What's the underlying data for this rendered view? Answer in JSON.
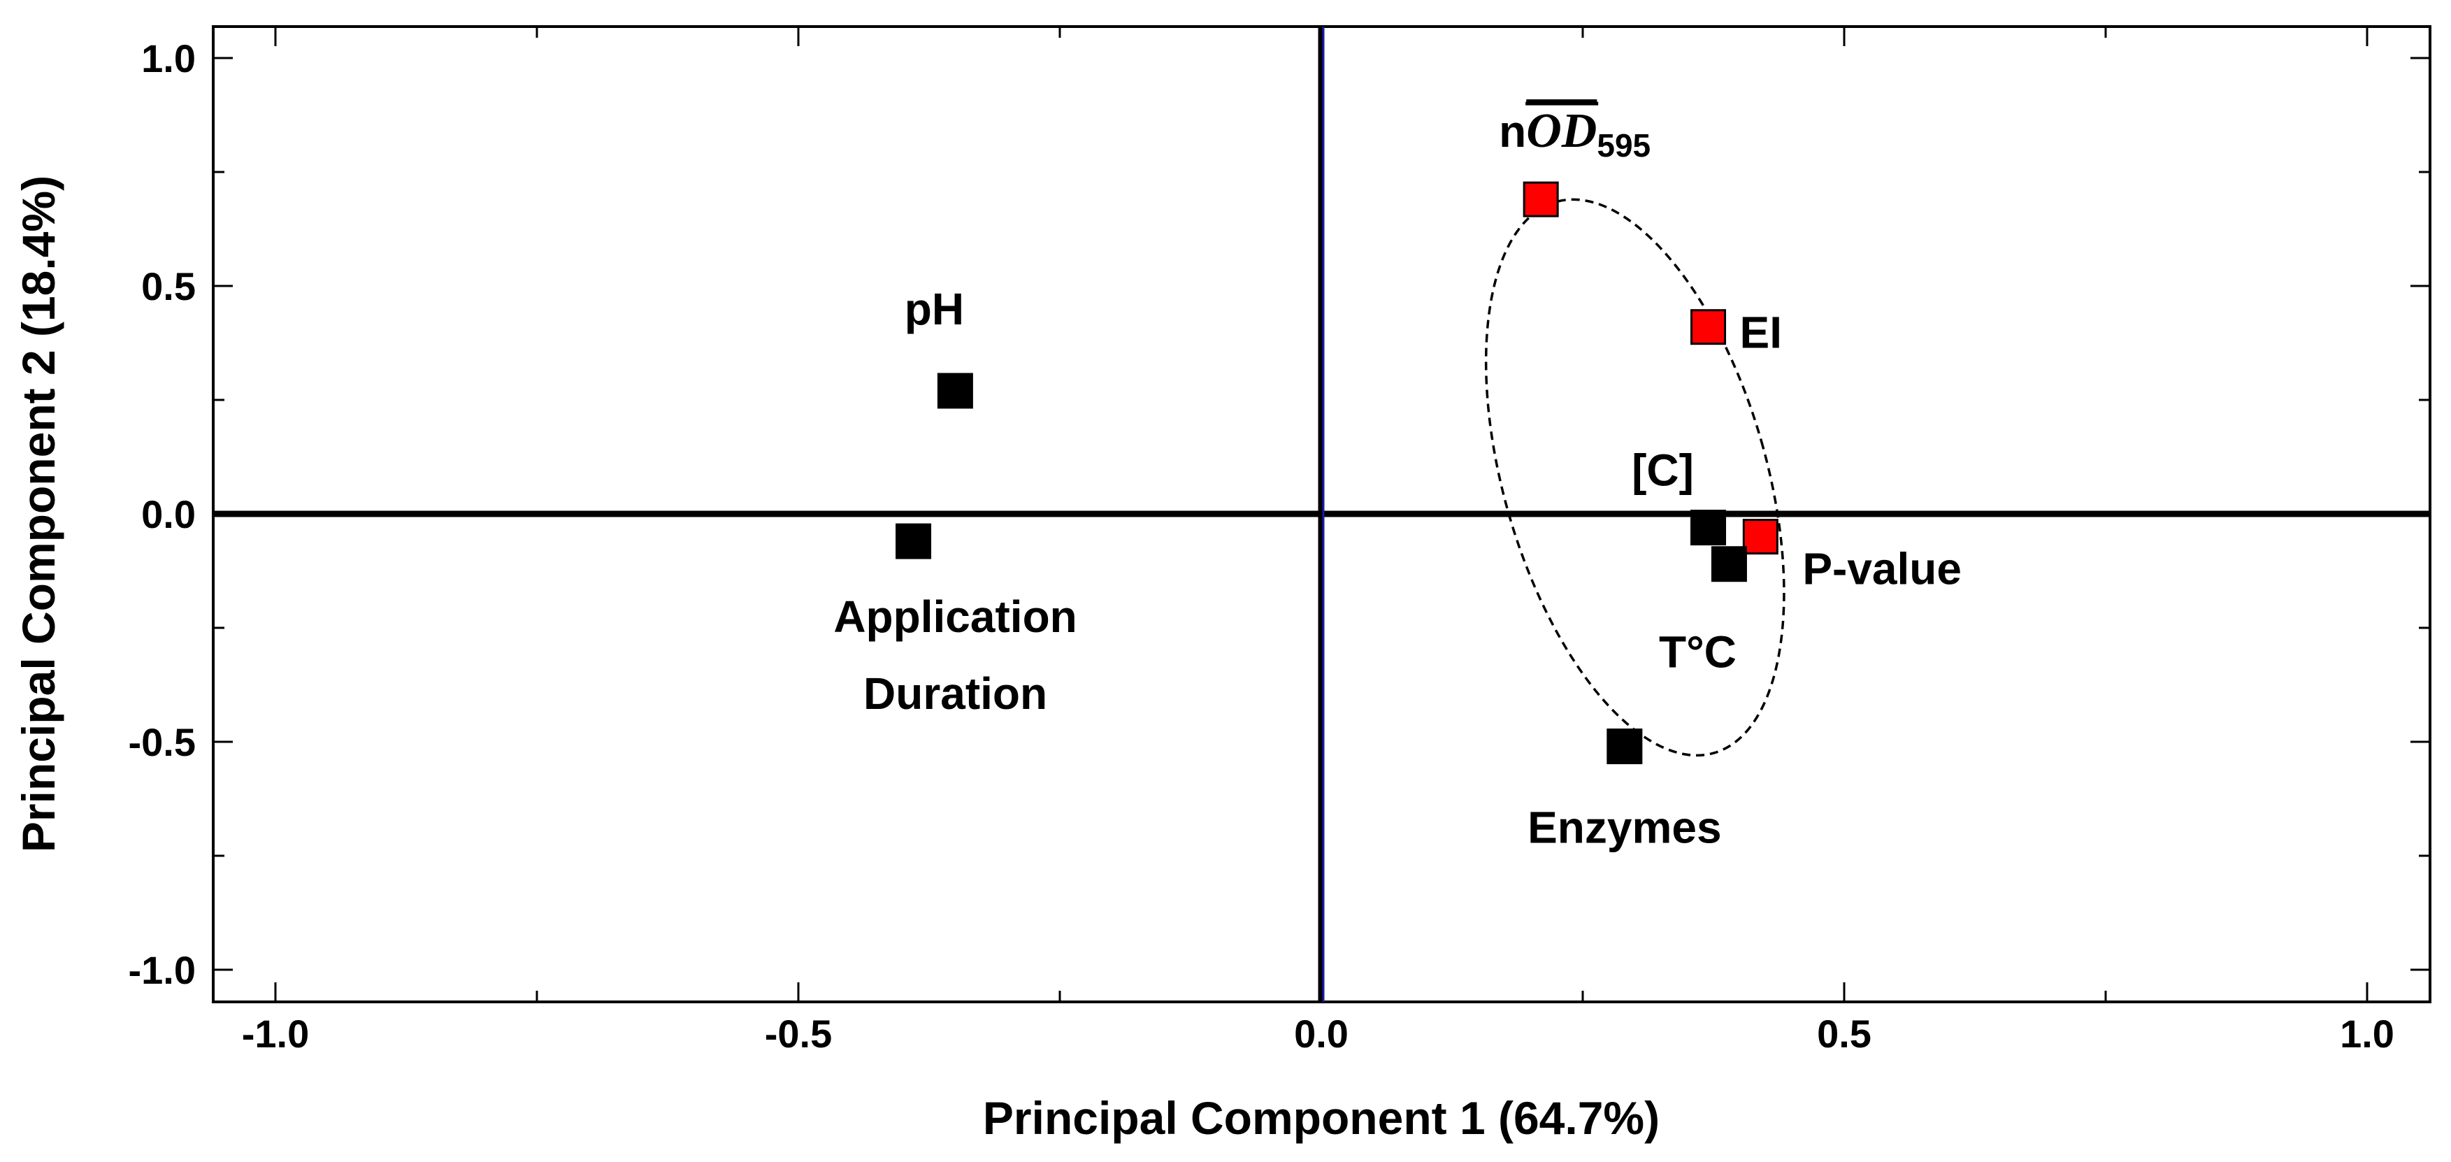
{
  "chart_data": {
    "type": "scatter",
    "title": "",
    "xlabel": "Principal Component 1 (64.7%)",
    "ylabel": "Principal Component 2 (18.4%)",
    "xlim": [
      -1.05,
      1.05
    ],
    "ylim": [
      -1.05,
      1.05
    ],
    "xticks": [
      "-1.0",
      "-0.5",
      "0.0",
      "0.5",
      "1.0"
    ],
    "yticks": [
      "1.0",
      "0.5",
      "0.0",
      "-0.5",
      "-1.0"
    ],
    "grid": false,
    "marker_colors": {
      "black": "#000000",
      "red": "#ff0000"
    },
    "points": [
      {
        "name": "pH",
        "label": "pH",
        "x": -0.35,
        "y": 0.27,
        "color": "black"
      },
      {
        "name": "application-duration",
        "label": "Application Duration",
        "label_lines": [
          "Application",
          "Duration"
        ],
        "x": -0.39,
        "y": -0.06,
        "color": "black"
      },
      {
        "name": "nod595",
        "label": "nOD595",
        "label_prefix": "n",
        "label_overline": "OD",
        "label_sub": "595",
        "x": 0.21,
        "y": 0.69,
        "color": "red"
      },
      {
        "name": "ei",
        "label": "EI",
        "x": 0.37,
        "y": 0.41,
        "color": "red"
      },
      {
        "name": "c",
        "label": "[C]",
        "x": 0.37,
        "y": -0.03,
        "color": "black"
      },
      {
        "name": "p-value",
        "label": "P-value",
        "x": 0.42,
        "y": -0.05,
        "color": "red"
      },
      {
        "name": "t-c",
        "label": "T°C",
        "x": 0.39,
        "y": -0.11,
        "color": "black"
      },
      {
        "name": "enzymes",
        "label": "Enzymes",
        "x": 0.29,
        "y": -0.51,
        "color": "black"
      }
    ],
    "ellipse": {
      "center": [
        0.3,
        0.08
      ],
      "style": "dashed"
    }
  }
}
